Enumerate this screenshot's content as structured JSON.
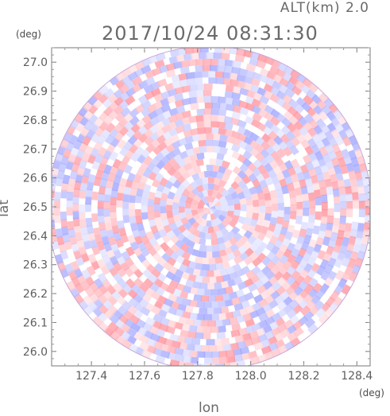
{
  "header": {
    "alt_label": "ALT(km) 2.0",
    "timestamp": "2017/10/24 08:31:30"
  },
  "units": {
    "y_unit": "(deg)",
    "x_unit": "(deg)"
  },
  "chart_data": {
    "type": "heatmap",
    "title": "",
    "xlabel": "lon",
    "ylabel": "lat",
    "xlim": [
      127.25,
      128.45
    ],
    "ylim": [
      25.95,
      27.05
    ],
    "x_ticks": [
      127.4,
      127.6,
      127.8,
      128.0,
      128.2,
      128.4
    ],
    "x_tick_labels": [
      "127.4",
      "127.6",
      "127.8",
      "128.0",
      "128.2",
      "128.4"
    ],
    "y_ticks": [
      26.0,
      26.1,
      26.2,
      26.3,
      26.4,
      26.5,
      26.6,
      26.7,
      26.8,
      26.9,
      27.0
    ],
    "y_tick_labels": [
      "26.0",
      "26.1",
      "26.2",
      "26.3",
      "26.4",
      "26.5",
      "26.6",
      "26.7",
      "26.8",
      "26.9",
      "27.0"
    ],
    "radar_center": {
      "lon": 127.845,
      "lat": 26.495
    },
    "radar_extent_deg": {
      "lon_radius": 0.61,
      "lat_radius": 0.54
    },
    "grid": false,
    "colors": {
      "positive": "#f2a0a6",
      "negative": "#a9aef0",
      "neutral": "#ffffff",
      "axis": "#7a7a7a"
    }
  }
}
